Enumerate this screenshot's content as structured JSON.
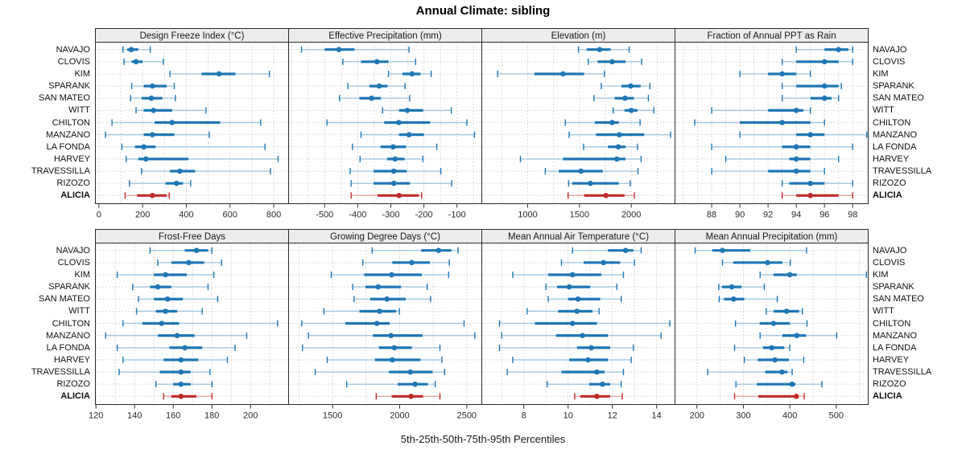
{
  "title": "Annual Climate: sibling",
  "caption": "5th-25th-50th-75th-95th Percentiles",
  "percentile_levels": [
    5,
    25,
    50,
    75,
    95
  ],
  "stations": [
    "NAVAJO",
    "CLOVIS",
    "KIM",
    "SPARANK",
    "SAN MATEO",
    "WITT",
    "CHILTON",
    "MANZANO",
    "LA FONDA",
    "HARVEY",
    "TRAVESSILLA",
    "RIZOZO",
    "ALICIA"
  ],
  "highlight_station": "ALICIA",
  "colors": {
    "series": "#1f77b4",
    "series_whisker": "#a4c8e1",
    "highlight": "#bf2c2c",
    "highlight_whisker": "#e2a9a9",
    "strip_bg": "#ececec",
    "grid": "#d0d0d0",
    "border": "#2b2b2b",
    "tick_text": "#2a2a2a"
  },
  "chart_data": [
    {
      "type": "dotplot",
      "title": "Design Freeze Index (°C)",
      "row": 0,
      "col": 0,
      "xlim": [
        -16,
        868
      ],
      "ticks": [
        0,
        200,
        400,
        600,
        800
      ],
      "grid_step": 100,
      "values": [
        [
          110,
          130,
          148,
          180,
          235
        ],
        [
          115,
          150,
          170,
          200,
          295
        ],
        [
          325,
          470,
          550,
          625,
          780
        ],
        [
          150,
          205,
          245,
          310,
          345
        ],
        [
          145,
          195,
          240,
          290,
          350
        ],
        [
          170,
          205,
          250,
          335,
          490
        ],
        [
          60,
          255,
          335,
          555,
          740
        ],
        [
          30,
          205,
          245,
          345,
          505
        ],
        [
          105,
          165,
          206,
          260,
          760
        ],
        [
          125,
          180,
          215,
          410,
          820
        ],
        [
          195,
          325,
          370,
          440,
          785
        ],
        [
          140,
          305,
          355,
          385,
          420
        ],
        [
          120,
          175,
          245,
          310,
          322
        ]
      ]
    },
    {
      "type": "dotplot",
      "title": "Effective Precipitation (mm)",
      "row": 0,
      "col": 1,
      "xlim": [
        -609,
        -25
      ],
      "ticks": [
        -500,
        -400,
        -300,
        -200,
        -100
      ],
      "grid_step": 50,
      "values": [
        [
          -570,
          -500,
          -457,
          -410,
          -245
        ],
        [
          -445,
          -390,
          -342,
          -307,
          -225
        ],
        [
          -307,
          -265,
          -236,
          -210,
          -178
        ],
        [
          -430,
          -365,
          -335,
          -310,
          -257
        ],
        [
          -455,
          -395,
          -358,
          -330,
          -243
        ],
        [
          -325,
          -275,
          -250,
          -202,
          -117
        ],
        [
          -493,
          -320,
          -276,
          -181,
          -70
        ],
        [
          -390,
          -275,
          -245,
          -200,
          -47
        ],
        [
          -416,
          -331,
          -293,
          -254,
          -161
        ],
        [
          -393,
          -311,
          -287,
          -258,
          -203
        ],
        [
          -423,
          -352,
          -291,
          -252,
          -149
        ],
        [
          -420,
          -352,
          -291,
          -242,
          -116
        ],
        [
          -420,
          -340,
          -275,
          -215,
          -207
        ]
      ]
    },
    {
      "type": "dotplot",
      "title": "Elevation (m)",
      "row": 0,
      "col": 2,
      "xlim": [
        557,
        2422
      ],
      "ticks": [
        1000,
        1500,
        2000
      ],
      "grid_step": 250,
      "values": [
        [
          1490,
          1570,
          1695,
          1800,
          1980
        ],
        [
          1585,
          1675,
          1815,
          1945,
          2100
        ],
        [
          710,
          1065,
          1340,
          1545,
          1740
        ],
        [
          1710,
          1905,
          1995,
          2090,
          2180
        ],
        [
          1640,
          1840,
          1940,
          2025,
          2165
        ],
        [
          1825,
          1935,
          2000,
          2060,
          2218
        ],
        [
          1363,
          1648,
          1815,
          1880,
          2085
        ],
        [
          1400,
          1660,
          1885,
          2125,
          2380
        ],
        [
          1540,
          1775,
          1875,
          1945,
          2060
        ],
        [
          930,
          1340,
          1860,
          1945,
          2095
        ],
        [
          1170,
          1300,
          1515,
          1725,
          2065
        ],
        [
          1395,
          1430,
          1605,
          1880,
          1990
        ],
        [
          1390,
          1545,
          1755,
          1935,
          2030
        ]
      ]
    },
    {
      "type": "dotplot",
      "title": "Fraction of Annual PPT as Rain",
      "row": 0,
      "col": 3,
      "xlim": [
        85.4,
        99.1
      ],
      "ticks": [
        88,
        90,
        92,
        94,
        96,
        98
      ],
      "grid_step": 1,
      "values": [
        [
          94,
          96,
          97,
          97.7,
          98
        ],
        [
          93,
          94,
          96,
          97,
          98
        ],
        [
          90,
          92,
          93,
          94,
          95
        ],
        [
          93,
          94,
          96,
          97,
          97.2
        ],
        [
          93,
          95,
          96,
          96.5,
          97
        ],
        [
          88,
          92,
          94,
          94.5,
          95
        ],
        [
          86.8,
          90,
          93,
          95,
          96
        ],
        [
          90,
          94,
          95,
          96,
          99
        ],
        [
          88,
          93,
          94,
          95,
          98
        ],
        [
          89,
          93.5,
          94,
          95,
          97
        ],
        [
          88,
          92,
          94,
          95,
          96
        ],
        [
          93,
          93.5,
          95,
          96,
          98
        ],
        [
          93,
          94,
          95,
          97,
          98
        ]
      ]
    },
    {
      "type": "dotplot",
      "title": "Frost-Free Days",
      "row": 1,
      "col": 0,
      "xlim": [
        119.7,
        219.7
      ],
      "ticks": [
        120,
        140,
        160,
        180,
        200
      ],
      "grid_step": 10,
      "values": [
        [
          148,
          166,
          172,
          178,
          180
        ],
        [
          152,
          159,
          168,
          176,
          185
        ],
        [
          131,
          150,
          156,
          167,
          181
        ],
        [
          139,
          148,
          152,
          159,
          178
        ],
        [
          142,
          150,
          157,
          165,
          183
        ],
        [
          141,
          151,
          156,
          162,
          175
        ],
        [
          134,
          144,
          154,
          163,
          214
        ],
        [
          125,
          152,
          162,
          171,
          198
        ],
        [
          131,
          158,
          166,
          175,
          192
        ],
        [
          134,
          155,
          164,
          173,
          188
        ],
        [
          132,
          153,
          164,
          169,
          179
        ],
        [
          151,
          160,
          164,
          169,
          180
        ],
        [
          155,
          159,
          164,
          172,
          180
        ]
      ]
    },
    {
      "type": "dotplot",
      "title": "Growing Degree Days (°C)",
      "row": 1,
      "col": 1,
      "xlim": [
        1172,
        2612
      ],
      "ticks": [
        1500,
        2000,
        2500
      ],
      "grid_step": 250,
      "values": [
        [
          1795,
          2160,
          2290,
          2385,
          2435
        ],
        [
          1725,
          1945,
          2090,
          2225,
          2370
        ],
        [
          1490,
          1735,
          1940,
          2165,
          2365
        ],
        [
          1650,
          1745,
          1840,
          2010,
          2205
        ],
        [
          1660,
          1780,
          1905,
          2045,
          2230
        ],
        [
          1435,
          1700,
          1850,
          1975,
          1998
        ],
        [
          1270,
          1595,
          1830,
          1925,
          2480
        ],
        [
          1320,
          1800,
          1935,
          2170,
          2560
        ],
        [
          1275,
          1845,
          1960,
          2090,
          2300
        ],
        [
          1460,
          1815,
          1945,
          2155,
          2315
        ],
        [
          1370,
          1920,
          2080,
          2245,
          2335
        ],
        [
          1605,
          1985,
          2115,
          2210,
          2265
        ],
        [
          1825,
          1940,
          2085,
          2175,
          2300
        ]
      ]
    },
    {
      "type": "dotplot",
      "title": "Mean Annual Air Temperature (°C)",
      "row": 1,
      "col": 2,
      "xlim": [
        6.1,
        14.83
      ],
      "ticks": [
        8,
        10,
        12,
        14
      ],
      "grid_step": 1,
      "values": [
        [
          10.2,
          11.8,
          12.6,
          12.95,
          13.3
        ],
        [
          9.7,
          10.7,
          11.6,
          12.35,
          13.0
        ],
        [
          7.5,
          9.1,
          10.2,
          11.5,
          12.5
        ],
        [
          9.0,
          9.5,
          10.05,
          11.0,
          12.2
        ],
        [
          9.1,
          10.0,
          10.45,
          11.45,
          12.4
        ],
        [
          8.15,
          9.55,
          10.4,
          11.1,
          11.4
        ],
        [
          6.9,
          8.5,
          10.2,
          11.3,
          14.6
        ],
        [
          7.0,
          9.45,
          10.65,
          11.8,
          14.2
        ],
        [
          6.9,
          10.4,
          11.05,
          11.9,
          12.95
        ],
        [
          7.5,
          10.05,
          10.9,
          11.8,
          12.85
        ],
        [
          7.25,
          9.7,
          11.3,
          11.65,
          12.5
        ],
        [
          9.05,
          10.95,
          11.55,
          11.9,
          12.4
        ],
        [
          10.3,
          10.55,
          11.3,
          11.9,
          12.45
        ]
      ]
    },
    {
      "type": "dotplot",
      "title": "Mean Annual Precipitation (mm)",
      "row": 1,
      "col": 3,
      "xlim": [
        152.7,
        568.8
      ],
      "ticks": [
        200,
        300,
        400,
        500
      ],
      "grid_step": 50,
      "values": [
        [
          196,
          233,
          255,
          315,
          436
        ],
        [
          255,
          278,
          352,
          384,
          401
        ],
        [
          336,
          365,
          400,
          415,
          565
        ],
        [
          247,
          254,
          275,
          296,
          345
        ],
        [
          248,
          258,
          279,
          302,
          373
        ],
        [
          349,
          365,
          393,
          420,
          427
        ],
        [
          283,
          335,
          365,
          400,
          437
        ],
        [
          336,
          384,
          415,
          435,
          501
        ],
        [
          281,
          342,
          361,
          388,
          400
        ],
        [
          302,
          331,
          368,
          398,
          430
        ],
        [
          223,
          347,
          383,
          395,
          405
        ],
        [
          284,
          329,
          405,
          412,
          469
        ],
        [
          281,
          332,
          414,
          416,
          431
        ]
      ]
    }
  ]
}
